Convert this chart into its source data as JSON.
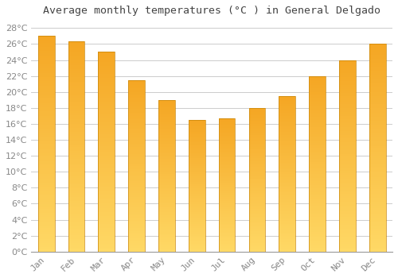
{
  "title": "Average monthly temperatures (°C ) in General Delgado",
  "months": [
    "Jan",
    "Feb",
    "Mar",
    "Apr",
    "May",
    "Jun",
    "Jul",
    "Aug",
    "Sep",
    "Oct",
    "Nov",
    "Dec"
  ],
  "values": [
    27.0,
    26.3,
    25.0,
    21.5,
    19.0,
    16.5,
    16.7,
    18.0,
    19.5,
    22.0,
    24.0,
    26.0
  ],
  "bar_color_top": "#F5A623",
  "bar_color_bottom": "#FFD966",
  "bar_edge_color": "#C8860A",
  "background_color": "#FFFFFF",
  "grid_color": "#CCCCCC",
  "ylim": [
    0,
    29
  ],
  "yticks": [
    0,
    2,
    4,
    6,
    8,
    10,
    12,
    14,
    16,
    18,
    20,
    22,
    24,
    26,
    28
  ],
  "title_fontsize": 9.5,
  "tick_fontsize": 8,
  "title_color": "#444444",
  "tick_color": "#888888",
  "bar_width": 0.55
}
